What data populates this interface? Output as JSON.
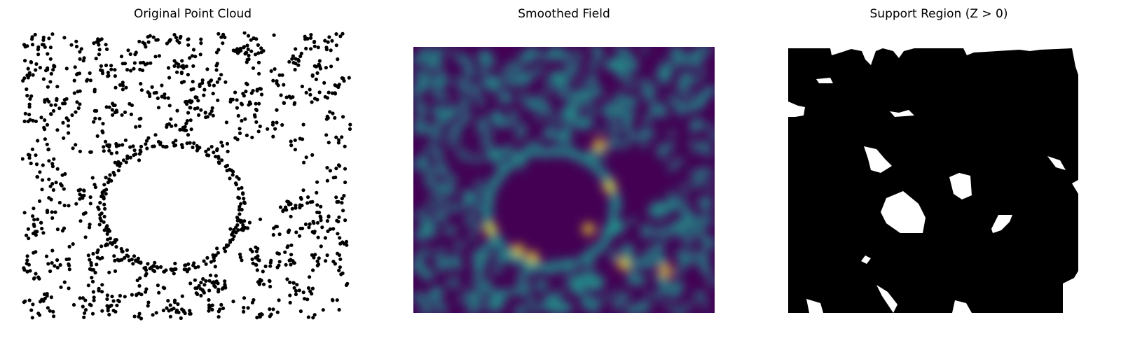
{
  "panels": [
    {
      "title": "Original Point Cloud"
    },
    {
      "title": "Smoothed Field"
    },
    {
      "title": "Support Region (Z > 0)"
    }
  ],
  "colors": {
    "points": "#000000",
    "field_low": "#440154",
    "field_mid": "#21918c",
    "field_high": "#fde725",
    "support_fill": "#000000",
    "support_hole": "#ffffff"
  },
  "structure": {
    "description_free": true
  }
}
